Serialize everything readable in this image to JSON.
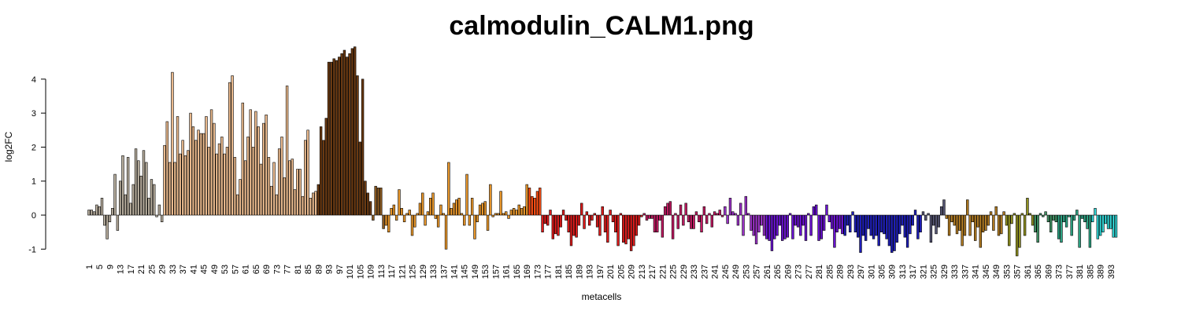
{
  "chart_data": {
    "type": "bar",
    "title": "calmodulin_CALM1.png",
    "x_label": "metacells",
    "y_label": "log2FC",
    "ylim": [
      -1.2,
      5.0
    ],
    "yticks": [
      -1,
      0,
      1,
      2,
      3,
      4
    ],
    "bar_border": "#000000",
    "categories": [
      "1",
      null,
      null,
      null,
      "5",
      null,
      null,
      null,
      "9",
      null,
      null,
      null,
      "13",
      null,
      null,
      null,
      "17",
      null,
      null,
      null,
      "21",
      null,
      null,
      null,
      "25",
      null,
      null,
      null,
      "29",
      null,
      null,
      null,
      "33",
      null,
      null,
      null,
      "37",
      null,
      null,
      null,
      "41",
      null,
      null,
      null,
      "45",
      null,
      null,
      null,
      "49",
      null,
      null,
      null,
      "53",
      null,
      null,
      null,
      "57",
      null,
      null,
      null,
      "61",
      null,
      null,
      null,
      "65",
      null,
      null,
      null,
      "69",
      null,
      null,
      null,
      "73",
      null,
      null,
      null,
      "77",
      null,
      null,
      null,
      "81",
      null,
      null,
      null,
      "85",
      null,
      null,
      null,
      "89",
      null,
      null,
      null,
      "93",
      null,
      null,
      null,
      "97",
      null,
      null,
      null,
      "101",
      null,
      null,
      null,
      "105",
      null,
      null,
      null,
      "109",
      null,
      null,
      null,
      "113",
      null,
      null,
      null,
      "117",
      null,
      null,
      null,
      "121",
      null,
      null,
      null,
      "125",
      null,
      null,
      null,
      "129",
      null,
      null,
      null,
      "133",
      null,
      null,
      null,
      "137",
      null,
      null,
      null,
      "141",
      null,
      null,
      null,
      "145",
      null,
      null,
      null,
      "149",
      null,
      null,
      null,
      "153",
      null,
      null,
      null,
      "157",
      null,
      null,
      null,
      "161",
      null,
      null,
      null,
      "165",
      null,
      null,
      null,
      "169",
      null,
      null,
      null,
      "173",
      null,
      null,
      null,
      "177",
      null,
      null,
      null,
      "181",
      null,
      null,
      null,
      "185",
      null,
      null,
      null,
      "189",
      null,
      null,
      null,
      "193",
      null,
      null,
      null,
      "197",
      null,
      null,
      null,
      "201",
      null,
      null,
      null,
      "205",
      null,
      null,
      null,
      "209",
      null,
      null,
      null,
      "213",
      null,
      null,
      null,
      "217",
      null,
      null,
      null,
      "221",
      null,
      null,
      null,
      "225",
      null,
      null,
      null,
      "229",
      null,
      null,
      null,
      "233",
      null,
      null,
      null,
      "237",
      null,
      null,
      null,
      "241",
      null,
      null,
      null,
      "245",
      null,
      null,
      null,
      "249",
      null,
      null,
      null,
      "253",
      null,
      null,
      null,
      "257",
      null,
      null,
      null,
      "261",
      null,
      null,
      null,
      "265",
      null,
      null,
      null,
      "269",
      null,
      null,
      null,
      "273",
      null,
      null,
      null,
      "277",
      null,
      null,
      null,
      "281",
      null,
      null,
      null,
      "285",
      null,
      null,
      null,
      "289",
      null,
      null,
      null,
      "293",
      null,
      null,
      null,
      "297",
      null,
      null,
      null,
      "301",
      null,
      null,
      null,
      "305",
      null,
      null,
      null,
      "309",
      null,
      null,
      null,
      "313",
      null,
      null,
      null,
      "317",
      null,
      null,
      null,
      "321",
      null,
      null,
      null,
      "325",
      null,
      null,
      null,
      "329",
      null,
      null,
      null,
      "333",
      null,
      null,
      null,
      "337",
      null,
      null,
      null,
      "341",
      null,
      null,
      null,
      "345",
      null,
      null,
      null,
      "349",
      null,
      null,
      null,
      "353",
      null,
      null,
      null,
      "357",
      null,
      null,
      null,
      "361",
      null,
      null,
      null,
      "365",
      null,
      null,
      null,
      "369",
      null,
      null,
      null,
      "373",
      null,
      null,
      null,
      "377",
      null,
      null,
      null,
      "381",
      null,
      null,
      null,
      "385",
      null,
      null,
      null,
      "389",
      null,
      null,
      null,
      "393",
      null,
      null
    ],
    "values": [
      0.15,
      0.15,
      0.1,
      0.3,
      0.25,
      0.5,
      -0.3,
      -0.7,
      -0.2,
      0.2,
      1.2,
      -0.45,
      1.0,
      1.75,
      0.6,
      1.7,
      0.35,
      0.9,
      1.95,
      1.6,
      1.15,
      1.9,
      1.55,
      0.5,
      1.05,
      0.9,
      -0.05,
      0.3,
      -0.2,
      2.05,
      2.75,
      1.55,
      4.2,
      1.55,
      2.9,
      1.8,
      2.2,
      1.75,
      1.9,
      3.0,
      2.6,
      2.2,
      2.5,
      2.4,
      2.4,
      2.9,
      2.0,
      3.1,
      2.7,
      1.8,
      2.1,
      2.3,
      1.8,
      2.0,
      3.9,
      4.1,
      1.7,
      0.6,
      1.05,
      3.3,
      1.6,
      2.3,
      3.1,
      2.0,
      3.05,
      2.6,
      1.5,
      2.7,
      2.95,
      1.7,
      0.85,
      1.55,
      0.6,
      1.95,
      2.3,
      1.1,
      3.8,
      1.6,
      1.65,
      0.75,
      1.35,
      1.35,
      0.55,
      2.2,
      2.5,
      0.5,
      0.65,
      0.7,
      0.9,
      2.6,
      2.2,
      2.85,
      4.5,
      4.5,
      4.6,
      4.55,
      4.65,
      4.75,
      4.85,
      4.65,
      4.75,
      4.9,
      4.95,
      4.1,
      2.15,
      4.0,
      1.0,
      0.65,
      0.4,
      -0.15,
      0.85,
      0.8,
      0.8,
      -0.4,
      -0.3,
      -0.5,
      0.2,
      0.3,
      -0.15,
      0.75,
      0.2,
      -0.2,
      0.05,
      0.15,
      -0.6,
      -0.35,
      0.05,
      0.35,
      0.65,
      -0.3,
      0.1,
      0.5,
      0.65,
      -0.1,
      -0.35,
      0.3,
      0.05,
      -1.0,
      1.55,
      0.2,
      0.35,
      0.45,
      0.5,
      0.05,
      -0.3,
      1.2,
      -0.3,
      0.5,
      -0.7,
      -0.2,
      0.3,
      0.35,
      0.4,
      -0.45,
      0.9,
      -0.05,
      0.05,
      0.05,
      0.7,
      0.05,
      0.1,
      -0.1,
      0.15,
      0.2,
      0.15,
      0.3,
      0.2,
      0.25,
      0.9,
      0.8,
      0.55,
      0.5,
      0.7,
      0.8,
      -0.5,
      -0.25,
      -0.3,
      0.15,
      -0.7,
      -0.55,
      -0.6,
      -0.35,
      0.15,
      -0.15,
      -0.5,
      -0.9,
      -0.6,
      -0.65,
      -0.3,
      0.35,
      -0.4,
      0.1,
      -0.3,
      -0.15,
      0.05,
      -0.35,
      -0.6,
      0.25,
      -0.5,
      -0.8,
      0.15,
      -0.2,
      -0.5,
      -0.9,
      0.05,
      -0.8,
      -0.85,
      -0.7,
      -1.05,
      -0.9,
      -0.6,
      -0.3,
      -0.05,
      0.05,
      -0.15,
      -0.1,
      -0.1,
      -0.5,
      -0.5,
      -0.15,
      -0.65,
      0.25,
      0.35,
      0.4,
      -0.7,
      0.05,
      -0.4,
      0.3,
      -0.3,
      0.35,
      -0.2,
      -0.4,
      -0.4,
      0.1,
      -0.2,
      -0.5,
      0.25,
      -0.25,
      0.05,
      -0.35,
      0.1,
      0.05,
      0.15,
      -0.05,
      0.25,
      -0.25,
      0.5,
      0.1,
      0.05,
      -0.3,
      0.35,
      -0.6,
      0.55,
      0.05,
      -0.45,
      -0.6,
      -0.85,
      -0.5,
      -0.3,
      -0.6,
      -0.7,
      -0.75,
      -1.05,
      -0.7,
      -0.6,
      -0.3,
      -0.75,
      -0.7,
      -0.65,
      0.05,
      -0.7,
      -0.3,
      -0.35,
      -0.6,
      -0.3,
      -0.75,
      0.05,
      -0.6,
      0.25,
      0.3,
      -0.75,
      -0.7,
      -0.45,
      0.3,
      -0.2,
      -0.4,
      -0.95,
      -0.5,
      -0.4,
      -0.55,
      -0.6,
      -0.3,
      -0.5,
      0.1,
      -0.5,
      -0.65,
      -1.1,
      -0.6,
      -0.75,
      -0.4,
      -0.6,
      -0.7,
      -0.6,
      -0.9,
      -0.5,
      -0.55,
      -0.7,
      -0.9,
      -1.1,
      -1.05,
      -0.8,
      -0.55,
      -0.3,
      -0.65,
      -0.95,
      -0.55,
      -0.3,
      0.15,
      -0.7,
      -0.5,
      0.1,
      -0.15,
      0.05,
      -0.8,
      -0.3,
      -0.55,
      -0.35,
      0.25,
      0.45,
      -0.1,
      -0.6,
      -0.2,
      -0.3,
      -0.55,
      -0.45,
      -0.9,
      -0.6,
      0.45,
      -0.6,
      -0.2,
      -0.75,
      -0.35,
      -0.95,
      -0.5,
      -0.45,
      -0.3,
      0.1,
      -0.45,
      0.25,
      -0.6,
      -0.55,
      0.1,
      -0.3,
      -0.9,
      -0.25,
      0.05,
      -1.2,
      -0.95,
      0.05,
      -0.6,
      0.5,
      0.05,
      -0.3,
      -0.5,
      -0.8,
      0.05,
      -0.05,
      0.1,
      -0.2,
      -0.5,
      -0.15,
      -0.2,
      -0.7,
      -0.8,
      -0.2,
      -0.35,
      -0.05,
      -0.6,
      -0.15,
      0.15,
      -0.95,
      -0.1,
      -0.2,
      -0.4,
      -0.95,
      -0.2,
      0.2,
      -0.7,
      -0.6,
      -0.5,
      -0.25,
      -0.4,
      -0.4,
      -0.65,
      -0.65
    ],
    "colors": [
      "#b5ab9b",
      "#b5ab9b",
      "#b5ab9b",
      "#b5ab9b",
      "#b5ab9b",
      "#b5ab9b",
      "#b5ab9b",
      "#b5ab9b",
      "#b5ab9b",
      "#b5ab9b",
      "#b5ab9b",
      "#b5ab9b",
      "#b5ab9b",
      "#b5ab9b",
      "#b5ab9b",
      "#b5ab9b",
      "#b5ab9b",
      "#b5ab9b",
      "#b5ab9b",
      "#b5ab9b",
      "#b5ab9b",
      "#b5ab9b",
      "#b5ab9b",
      "#b5ab9b",
      "#b5ab9b",
      "#b5ab9b",
      "#b5ab9b",
      "#b5ab9b",
      "#b5ab9b",
      "#e9b98d",
      "#e9b98d",
      "#e9b98d",
      "#e9b98d",
      "#e9b98d",
      "#e9b98d",
      "#e9b98d",
      "#e9b98d",
      "#e9b98d",
      "#e9b98d",
      "#e9b98d",
      "#e9b98d",
      "#e9b98d",
      "#e9b98d",
      "#e9b98d",
      "#e9b98d",
      "#e9b98d",
      "#e9b98d",
      "#e9b98d",
      "#e9b98d",
      "#e9b98d",
      "#e9b98d",
      "#e9b98d",
      "#e9b98d",
      "#e9b98d",
      "#e9b98d",
      "#e9b98d",
      "#e9b98d",
      "#e9b98d",
      "#e9b98d",
      "#e9b98d",
      "#e9b98d",
      "#e9b98d",
      "#e9b98d",
      "#e9b98d",
      "#e9b98d",
      "#e9b98d",
      "#e9b98d",
      "#e9b98d",
      "#e9b98d",
      "#e9b98d",
      "#e9b98d",
      "#e9b98d",
      "#e9b98d",
      "#e9b98d",
      "#e9b98d",
      "#e9b98d",
      "#e9b98d",
      "#e9b98d",
      "#e9b98d",
      "#e9b98d",
      "#e9b98d",
      "#e9b98d",
      "#e9b98d",
      "#e9b98d",
      "#e9b98d",
      "#e9b98d",
      "#e9b98d",
      "#e9b98d",
      "#6b3a12",
      "#6b3a12",
      "#6b3a12",
      "#6b3a12",
      "#6b3a12",
      "#6b3a12",
      "#6b3a12",
      "#6b3a12",
      "#6b3a12",
      "#6b3a12",
      "#6b3a12",
      "#6b3a12",
      "#6b3a12",
      "#6b3a12",
      "#6b3a12",
      "#6b3a12",
      "#6b3a12",
      "#6b3a12",
      "#6b3a12",
      "#6b3a12",
      "#6b3a12",
      "#8c5a20",
      "#8c5a20",
      "#8c5a20",
      "#8c5a20",
      "#8c5a20",
      "#e8962a",
      "#e8962a",
      "#e8962a",
      "#e8962a",
      "#e8962a",
      "#e8962a",
      "#e8962a",
      "#e8962a",
      "#e8962a",
      "#e8962a",
      "#e8962a",
      "#e8962a",
      "#e8962a",
      "#e8962a",
      "#e8962a",
      "#e8962a",
      "#e8962a",
      "#e8962a",
      "#e8962a",
      "#e8962a",
      "#e8962a",
      "#e8962a",
      "#e8962a",
      "#e8962a",
      "#e8962a",
      "#e8962a",
      "#e8962a",
      "#e8962a",
      "#e8962a",
      "#e8962a",
      "#e8962a",
      "#e8962a",
      "#e8962a",
      "#e8962a",
      "#e8962a",
      "#e8962a",
      "#e8962a",
      "#e8962a",
      "#e8962a",
      "#e8962a",
      "#e8962a",
      "#e8962a",
      "#e8962a",
      "#e8962a",
      "#e8962a",
      "#e8962a",
      "#e8962a",
      "#e8962a",
      "#e8962a",
      "#e8962a",
      "#e8962a",
      "#e8962a",
      "#e8962a",
      "#e8962a",
      "#e8962a",
      "#ff4d12",
      "#ff4d12",
      "#ff4d12",
      "#ff4d12",
      "#ff4d12",
      "#dd1a1a",
      "#dd1a1a",
      "#dd1a1a",
      "#dd1a1a",
      "#dd1a1a",
      "#dd1a1a",
      "#dd1a1a",
      "#dd1a1a",
      "#dd1a1a",
      "#dd1a1a",
      "#dd1a1a",
      "#dd1a1a",
      "#dd1a1a",
      "#dd1a1a",
      "#dd1a1a",
      "#dd1a1a",
      "#dd1a1a",
      "#dd1a1a",
      "#dd1a1a",
      "#dd1a1a",
      "#dd1a1a",
      "#dd1a1a",
      "#dd1a1a",
      "#dd1a1a",
      "#dd1a1a",
      "#dd1a1a",
      "#dd1a1a",
      "#dd1a1a",
      "#dd1a1a",
      "#dd1a1a",
      "#dd1a1a",
      "#dd1a1a",
      "#dd1a1a",
      "#dd1a1a",
      "#dd1a1a",
      "#dd1a1a",
      "#dd1a1a",
      "#dd1a1a",
      "#dd1a1a",
      "#c21a62",
      "#c21a62",
      "#c21a62",
      "#c21a62",
      "#c21a62",
      "#c21a62",
      "#c21a62",
      "#c21a62",
      "#c21a62",
      "#c21a62",
      "#c21a62",
      "#c21a62",
      "#c21a62",
      "#c21a62",
      "#c21a62",
      "#c21a62",
      "#c21a62",
      "#c21a62",
      "#c21a62",
      "#c21a62",
      "#c21a62",
      "#c21a62",
      "#c21a62",
      "#c21a62",
      "#c21a62",
      "#c21a62",
      "#c21a62",
      "#c21a62",
      "#c21a62",
      "#c21a62",
      "#c21a62",
      "#9b32c8",
      "#9b32c8",
      "#9b32c8",
      "#9b32c8",
      "#9b32c8",
      "#9b32c8",
      "#9b32c8",
      "#9b32c8",
      "#9b32c8",
      "#9b32c8",
      "#9b32c8",
      "#9b32c8",
      "#9b32c8",
      "#9b32c8",
      "#9b32c8",
      "#9b32c8",
      "#6a12d2",
      "#6a12d2",
      "#6a12d2",
      "#6a12d2",
      "#6a12d2",
      "#6a12d2",
      "#6a12d2",
      "#6a12d2",
      "#6a12d2",
      "#6a12d2",
      "#6a12d2",
      "#6a12d2",
      "#6a12d2",
      "#6a12d2",
      "#6a12d2",
      "#6a12d2",
      "#6a12d2",
      "#6a12d2",
      "#6a12d2",
      "#6a12d2",
      "#6a12d2",
      "#6a12d2",
      "#6a12d2",
      "#6a12d2",
      "#6a12d2",
      "#6a12d2",
      "#6a12d2",
      "#6a12d2",
      "#6a12d2",
      "#6a12d2",
      "#1e1eb8",
      "#1e1eb8",
      "#1e1eb8",
      "#1e1eb8",
      "#1e1eb8",
      "#1e1eb8",
      "#1e1eb8",
      "#1e1eb8",
      "#1e1eb8",
      "#1e1eb8",
      "#1e1eb8",
      "#1e1eb8",
      "#1e1eb8",
      "#1e1eb8",
      "#1e1eb8",
      "#1e1eb8",
      "#1e1eb8",
      "#1e1eb8",
      "#1e1eb8",
      "#1e1eb8",
      "#1e1eb8",
      "#1e1eb8",
      "#1e1eb8",
      "#1e1eb8",
      "#1e1eb8",
      "#1e1eb8",
      "#1e1eb8",
      "#1e1eb8",
      "#1e1eb8",
      "#1e1eb8",
      "#545472",
      "#545472",
      "#545472",
      "#545472",
      "#545472",
      "#545472",
      "#545472",
      "#545472",
      "#545472",
      "#b07a22",
      "#b07a22",
      "#b07a22",
      "#b07a22",
      "#b07a22",
      "#b07a22",
      "#b07a22",
      "#b07a22",
      "#b07a22",
      "#b07a22",
      "#b07a22",
      "#b07a22",
      "#b07a22",
      "#b07a22",
      "#b07a22",
      "#b07a22",
      "#b07a22",
      "#b07a22",
      "#b07a22",
      "#b07a22",
      "#b07a22",
      "#b07a22",
      "#b07a22",
      "#8f9022",
      "#8f9022",
      "#8f9022",
      "#8f9022",
      "#8f9022",
      "#8f9022",
      "#8f9022",
      "#8f9022",
      "#8f9022",
      "#8f9022",
      "#8f9022",
      "#3f9062",
      "#3f9062",
      "#3f9062",
      "#3f9062",
      "#3f9062",
      "#3f9062",
      "#3f9062",
      "#3f9062",
      "#3f9062",
      "#2ea383",
      "#2ea383",
      "#2ea383",
      "#2ea383",
      "#2ea383",
      "#2ea383",
      "#2ea383",
      "#2ea383",
      "#2ea383",
      "#2ea383",
      "#2ea383",
      "#2ea383",
      "#2ea383",
      "#2ed2d2",
      "#2ed2d2",
      "#2ed2d2",
      "#2ed2d2",
      "#2ed2d2",
      "#2ed2d2",
      "#2ed2d2",
      "#2ed2d2",
      "#2ed2d2",
      "#2ed2d2"
    ]
  }
}
